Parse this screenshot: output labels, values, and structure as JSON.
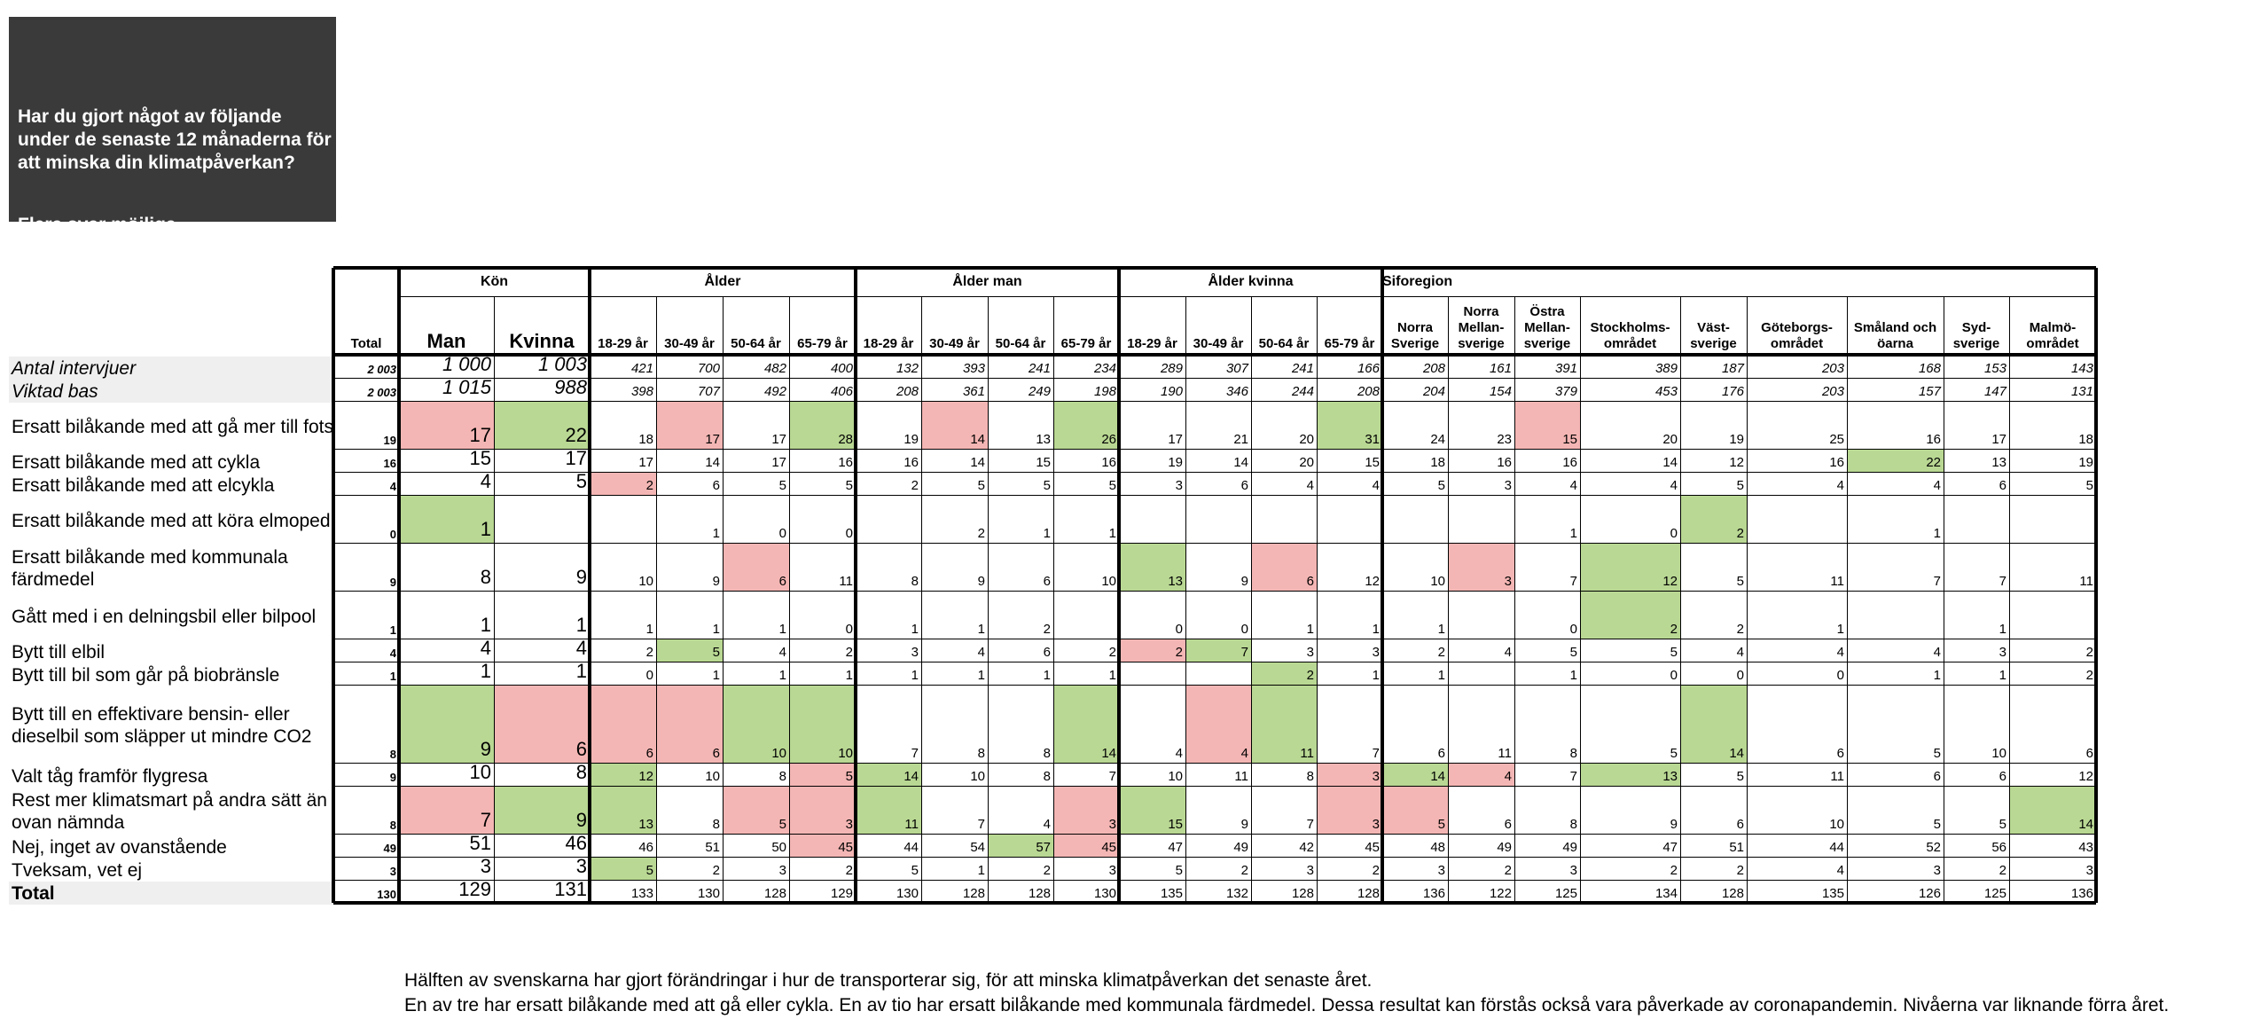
{
  "question": {
    "text": "Har du gjort något av följande under de senaste 12 månaderna för att minska din klimatpåverkan?",
    "subtext": "Flera svar möjliga"
  },
  "groups": [
    {
      "label": "Kön",
      "start": 1,
      "span": 2
    },
    {
      "label": "Ålder",
      "start": 3,
      "span": 4
    },
    {
      "label": "Ålder man",
      "start": 7,
      "span": 4
    },
    {
      "label": "Ålder kvinna",
      "start": 11,
      "span": 4
    },
    {
      "label": "Siforegion",
      "start": 15,
      "span": 10
    }
  ],
  "columns": [
    "Total",
    "Man",
    "Kvinna",
    "18-29 år",
    "30-49 år",
    "50-64 år",
    "65-79 år",
    "18-29 år",
    "30-49 år",
    "50-64 år",
    "65-79 år",
    "18-29 år",
    "30-49 år",
    "50-64 år",
    "65-79 år",
    "Norra Sverige",
    "Norra Mellan-sverige",
    "Östra Mellan-sverige",
    "Stockholms-området",
    "Väst-sverige",
    "Göteborgs-området",
    "Småland och öarna",
    "Syd-sverige",
    "Malmö-området"
  ],
  "rows": [
    {
      "label": "Antal intervjuer",
      "style": "italic shaded",
      "values": [
        "2 003",
        "1 000",
        "1 003",
        "421",
        "700",
        "482",
        "400",
        "132",
        "393",
        "241",
        "234",
        "289",
        "307",
        "241",
        "166",
        "208",
        "161",
        "391",
        "389",
        "187",
        "203",
        "168",
        "153",
        "143"
      ],
      "colors": {}
    },
    {
      "label": "Viktad bas",
      "style": "italic shaded",
      "values": [
        "2 003",
        "1 015",
        "988",
        "398",
        "707",
        "492",
        "406",
        "208",
        "361",
        "249",
        "198",
        "190",
        "346",
        "244",
        "208",
        "204",
        "154",
        "379",
        "453",
        "176",
        "203",
        "157",
        "147",
        "131"
      ],
      "colors": {}
    },
    {
      "label": "Ersatt bilåkande med att gå mer till fots",
      "style": "",
      "values": [
        "19",
        "17",
        "22",
        "18",
        "17",
        "17",
        "28",
        "19",
        "14",
        "13",
        "26",
        "17",
        "21",
        "20",
        "31",
        "24",
        "23",
        "15",
        "20",
        "19",
        "25",
        "16",
        "17",
        "18"
      ],
      "colors": {
        "1": "red",
        "2": "green",
        "4": "red",
        "6": "green",
        "8": "red",
        "10": "green",
        "14": "green",
        "17": "red"
      }
    },
    {
      "label": "Ersatt bilåkande med att cykla",
      "style": "",
      "values": [
        "16",
        "15",
        "17",
        "17",
        "14",
        "17",
        "16",
        "16",
        "14",
        "15",
        "16",
        "19",
        "14",
        "20",
        "15",
        "18",
        "16",
        "16",
        "14",
        "12",
        "16",
        "22",
        "13",
        "19"
      ],
      "colors": {
        "21": "green"
      }
    },
    {
      "label": "Ersatt bilåkande med att elcykla",
      "style": "",
      "values": [
        "4",
        "4",
        "5",
        "2",
        "6",
        "5",
        "5",
        "2",
        "5",
        "5",
        "5",
        "3",
        "6",
        "4",
        "4",
        "5",
        "3",
        "4",
        "4",
        "5",
        "4",
        "4",
        "6",
        "5"
      ],
      "colors": {
        "3": "red"
      }
    },
    {
      "label": "Ersatt bilåkande med att köra elmoped",
      "style": "",
      "values": [
        "0",
        "1",
        "",
        "",
        "1",
        "0",
        "0",
        "",
        "2",
        "1",
        "1",
        "",
        "",
        "",
        "",
        "",
        "",
        "1",
        "0",
        "2",
        "",
        "1",
        "",
        ""
      ],
      "colors": {
        "1": "green",
        "19": "green"
      }
    },
    {
      "label": "Ersatt bilåkande med kommunala färdmedel",
      "style": "",
      "values": [
        "9",
        "8",
        "9",
        "10",
        "9",
        "6",
        "11",
        "8",
        "9",
        "6",
        "10",
        "13",
        "9",
        "6",
        "12",
        "10",
        "3",
        "7",
        "12",
        "5",
        "11",
        "7",
        "7",
        "11"
      ],
      "colors": {
        "5": "red",
        "11": "green",
        "13": "red",
        "16": "red",
        "18": "green"
      }
    },
    {
      "label": "Gått med i en delningsbil eller bilpool",
      "style": "",
      "values": [
        "1",
        "1",
        "1",
        "1",
        "1",
        "1",
        "0",
        "1",
        "1",
        "2",
        "",
        "0",
        "0",
        "1",
        "1",
        "1",
        "",
        "0",
        "2",
        "2",
        "1",
        "",
        "1",
        ""
      ],
      "colors": {
        "18": "green"
      }
    },
    {
      "label": "Bytt till elbil",
      "style": "",
      "values": [
        "4",
        "4",
        "4",
        "2",
        "5",
        "4",
        "2",
        "3",
        "4",
        "6",
        "2",
        "2",
        "7",
        "3",
        "3",
        "2",
        "4",
        "5",
        "5",
        "4",
        "4",
        "4",
        "3",
        "2"
      ],
      "colors": {
        "4": "green",
        "11": "red",
        "12": "green"
      }
    },
    {
      "label": "Bytt till bil som går på biobränsle",
      "style": "",
      "values": [
        "1",
        "1",
        "1",
        "0",
        "1",
        "1",
        "1",
        "1",
        "1",
        "1",
        "1",
        "",
        "",
        "2",
        "1",
        "1",
        "",
        "1",
        "0",
        "0",
        "0",
        "1",
        "1",
        "2"
      ],
      "colors": {
        "13": "green"
      }
    },
    {
      "label": "Bytt till en effektivare bensin- eller dieselbil som släpper ut mindre CO2",
      "style": "",
      "values": [
        "8",
        "9",
        "6",
        "6",
        "6",
        "10",
        "10",
        "7",
        "8",
        "8",
        "14",
        "4",
        "4",
        "11",
        "7",
        "6",
        "11",
        "8",
        "5",
        "14",
        "6",
        "5",
        "10",
        "6"
      ],
      "colors": {
        "1": "green",
        "2": "red",
        "3": "red",
        "4": "red",
        "5": "green",
        "6": "green",
        "10": "green",
        "12": "red",
        "13": "green",
        "19": "green"
      }
    },
    {
      "label": "Valt tåg framför flygresa",
      "style": "",
      "values": [
        "9",
        "10",
        "8",
        "12",
        "10",
        "8",
        "5",
        "14",
        "10",
        "8",
        "7",
        "10",
        "11",
        "8",
        "3",
        "14",
        "4",
        "7",
        "13",
        "5",
        "11",
        "6",
        "6",
        "12"
      ],
      "colors": {
        "3": "green",
        "6": "red",
        "7": "green",
        "14": "red",
        "15": "green",
        "16": "red",
        "18": "green"
      }
    },
    {
      "label": "Rest mer klimatsmart på andra sätt än ovan nämnda",
      "style": "",
      "values": [
        "8",
        "7",
        "9",
        "13",
        "8",
        "5",
        "3",
        "11",
        "7",
        "4",
        "3",
        "15",
        "9",
        "7",
        "3",
        "5",
        "6",
        "8",
        "9",
        "6",
        "10",
        "5",
        "5",
        "14"
      ],
      "colors": {
        "1": "red",
        "2": "green",
        "3": "green",
        "5": "red",
        "6": "red",
        "7": "green",
        "10": "red",
        "11": "green",
        "14": "red",
        "15": "red",
        "23": "green"
      }
    },
    {
      "label": "Nej, inget av ovanstående",
      "style": "",
      "values": [
        "49",
        "51",
        "46",
        "46",
        "51",
        "50",
        "45",
        "44",
        "54",
        "57",
        "45",
        "47",
        "49",
        "42",
        "45",
        "48",
        "49",
        "49",
        "47",
        "51",
        "44",
        "52",
        "56",
        "43"
      ],
      "colors": {
        "6": "red",
        "9": "green",
        "10": "red"
      }
    },
    {
      "label": "Tveksam, vet ej",
      "style": "",
      "values": [
        "3",
        "3",
        "3",
        "5",
        "2",
        "3",
        "2",
        "5",
        "1",
        "2",
        "3",
        "5",
        "2",
        "3",
        "2",
        "3",
        "2",
        "3",
        "2",
        "2",
        "4",
        "3",
        "2",
        "3"
      ],
      "colors": {
        "3": "green"
      }
    },
    {
      "label": "Total",
      "style": "bold shaded",
      "values": [
        "130",
        "129",
        "131",
        "133",
        "130",
        "128",
        "129",
        "130",
        "128",
        "128",
        "130",
        "135",
        "132",
        "128",
        "128",
        "136",
        "122",
        "125",
        "134",
        "128",
        "135",
        "126",
        "125",
        "136"
      ],
      "colors": {}
    }
  ],
  "footer": {
    "line1": "Hälften av svenskarna har gjort förändringar i hur de transporterar sig, för att minska klimatpåverkan det senaste året.",
    "line2": "En av tre har ersatt bilåkande med att gå eller cykla. En av tio har ersatt bilåkande med kommunala färdmedel. Dessa resultat kan förstås också vara påverkade av coronapandemin. Nivåerna var liknande förra året."
  }
}
